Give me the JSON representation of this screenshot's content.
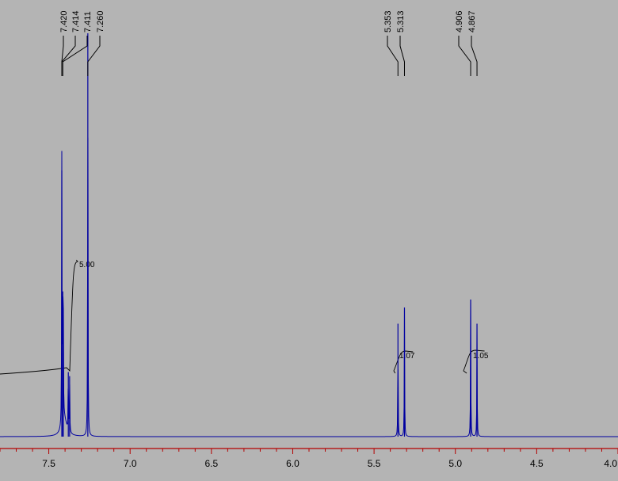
{
  "chart_data": {
    "type": "line",
    "title": "",
    "xlabel": "",
    "ylabel": "",
    "x_unit": "ppm",
    "xlim": [
      7.8,
      4.0
    ],
    "x_axis_reversed": true,
    "tick_labels": [
      "7.5",
      "7.0",
      "6.5",
      "6.0",
      "5.5",
      "5.0",
      "4.5",
      "4.0"
    ],
    "grid": false,
    "colors": {
      "background": "#b4b4b4",
      "spectrum": "#0000a0",
      "axis": "#b40000",
      "annotation": "#000000"
    },
    "peak_labels": [
      "7.420",
      "7.414",
      "7.411",
      "7.260",
      "5.353",
      "5.313",
      "4.906",
      "4.867"
    ],
    "peaks": [
      {
        "ppm": 7.42,
        "rel_height": 0.66
      },
      {
        "ppm": 7.414,
        "rel_height": 0.36
      },
      {
        "ppm": 7.411,
        "rel_height": 0.3
      },
      {
        "ppm": 7.38,
        "rel_height": 0.16
      },
      {
        "ppm": 7.372,
        "rel_height": 0.15
      },
      {
        "ppm": 7.26,
        "rel_height": 1.0
      },
      {
        "ppm": 5.353,
        "rel_height": 0.28
      },
      {
        "ppm": 5.313,
        "rel_height": 0.32
      },
      {
        "ppm": 4.906,
        "rel_height": 0.34
      },
      {
        "ppm": 4.867,
        "rel_height": 0.28
      }
    ],
    "integrals": [
      {
        "label": "5.00",
        "from_ppm": 7.8,
        "to_ppm": 7.36
      },
      {
        "label": "1.07",
        "from_ppm": 5.37,
        "to_ppm": 5.29
      },
      {
        "label": "1.05",
        "from_ppm": 4.93,
        "to_ppm": 4.85
      }
    ]
  }
}
